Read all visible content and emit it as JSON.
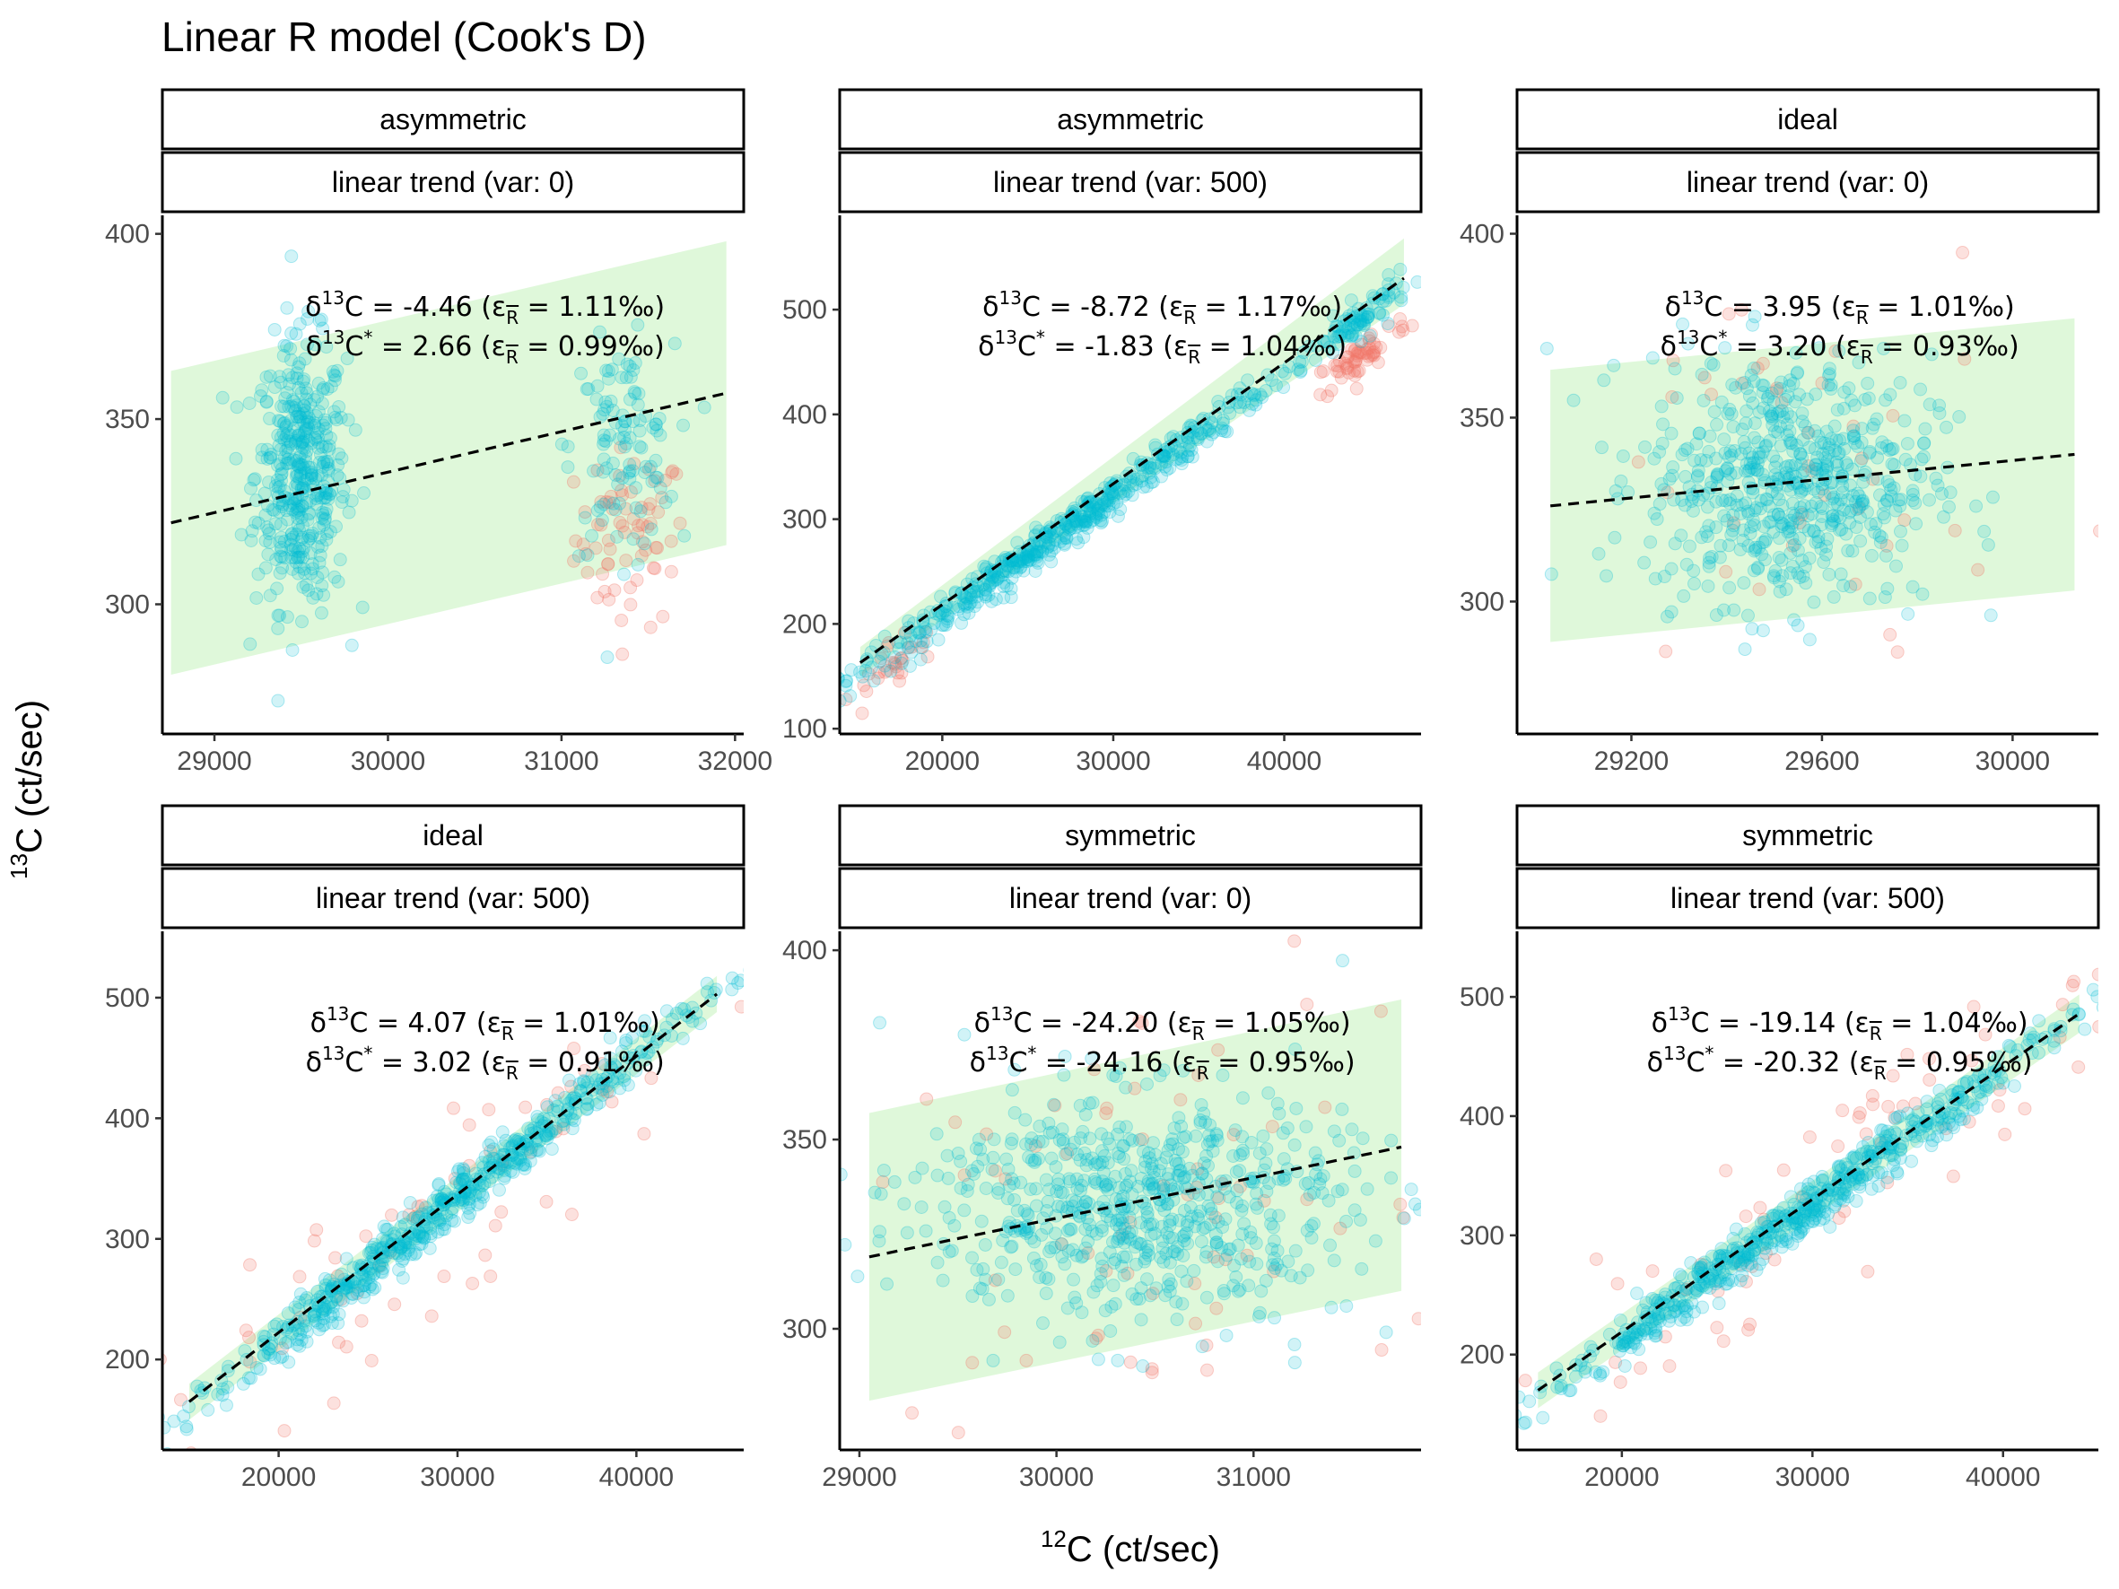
{
  "title": "Linear R model (Cook's D)",
  "axis_titles": {
    "x": {
      "sup": "12",
      "text": "C  (ct/sec)"
    },
    "y": {
      "sup": "13",
      "text": "C  (ct/sec)"
    }
  },
  "colors": {
    "kept_points": "#00bcd4",
    "outlier_points": "#f0786a",
    "band": "#d9f7d3",
    "fit_line": "#000000",
    "strip_bg": "#ffffff",
    "strip_border": "#000000"
  },
  "legend": "none",
  "grid": false,
  "chart_data": [
    {
      "type": "scatter",
      "strip": [
        "asymmetric",
        "linear trend (var: 0)"
      ],
      "x_axis_label": "12C (ct/sec)",
      "y_axis_label": "13C (ct/sec)",
      "x_ticks": [
        29000,
        30000,
        31000,
        32000
      ],
      "y_ticks": [
        300,
        350,
        400
      ],
      "xlim": [
        28700,
        32050
      ],
      "ylim": [
        265,
        405
      ],
      "clusters": [
        {
          "cx": 29500,
          "sx": 130,
          "cy": 335,
          "sy": 18,
          "n": 420,
          "slope": 0
        },
        {
          "cx": 31350,
          "sx": 150,
          "cy": 342,
          "sy": 14,
          "n": 110,
          "slope": 0
        },
        {
          "cx": 31400,
          "sx": 160,
          "cy": 318,
          "sy": 12,
          "n": 70,
          "outlier": true
        }
      ],
      "fit_line": {
        "x": [
          28750,
          31950
        ],
        "y": [
          322,
          357
        ]
      },
      "confidence_band": {
        "x": [
          28750,
          31950
        ],
        "lower": [
          281,
          316
        ],
        "upper": [
          363,
          398
        ]
      },
      "annotations": [
        "δ13C =  -4.46  (εR̄ =  1.11‰)",
        "δ13C* =  2.66  (εR̄ =  0.99‰)"
      ],
      "stats": {
        "d13c": "-4.46",
        "eps_d13c": "1.11‰",
        "d13c_star": "2.66",
        "eps_d13c_star": "0.99‰"
      }
    },
    {
      "type": "scatter",
      "strip": [
        "asymmetric",
        "linear trend (var: 500)"
      ],
      "x_axis_label": "12C (ct/sec)",
      "y_axis_label": "13C (ct/sec)",
      "x_ticks": [
        20000,
        30000,
        40000
      ],
      "y_ticks": [
        100,
        200,
        300,
        400,
        500
      ],
      "xlim": [
        14000,
        48000
      ],
      "ylim": [
        95,
        590
      ],
      "trend": {
        "a": -25,
        "b": 0.0116
      },
      "clusters": [
        {
          "cx": 27000,
          "sx": 6500,
          "trend": true,
          "sy": 9,
          "n": 520
        },
        {
          "cx": 44500,
          "sx": 1400,
          "trend": true,
          "sy": 9,
          "n": 80
        },
        {
          "cx": 44500,
          "sx": 1400,
          "trend": true,
          "offset": -35,
          "sy": 10,
          "n": 60,
          "outlier": true
        },
        {
          "cx": 17000,
          "sx": 1400,
          "trend": true,
          "offset": -15,
          "sy": 14,
          "n": 30,
          "outlier": true
        }
      ],
      "fit_line": {
        "x": [
          15200,
          47000
        ],
        "y": [
          163,
          530
        ]
      },
      "confidence_band": {
        "x": [
          15200,
          47000
        ],
        "lower": [
          150,
          505
        ],
        "upper": [
          178,
          568
        ]
      },
      "annotations": [
        "δ13C =  -8.72  (εR̄ =  1.17‰)",
        "δ13C* =  -1.83  (εR̄ =  1.04‰)"
      ],
      "stats": {
        "d13c": "-8.72",
        "eps_d13c": "1.17‰",
        "d13c_star": "-1.83",
        "eps_d13c_star": "1.04‰"
      }
    },
    {
      "type": "scatter",
      "strip": [
        "ideal",
        "linear trend (var: 0)"
      ],
      "x_axis_label": "12C (ct/sec)",
      "y_axis_label": "13C (ct/sec)",
      "x_ticks": [
        29200,
        29600,
        30000
      ],
      "y_ticks": [
        300,
        350,
        400
      ],
      "xlim": [
        28960,
        30180
      ],
      "ylim": [
        264,
        405
      ],
      "clusters": [
        {
          "cx": 29530,
          "sx": 150,
          "cy": 333,
          "sy": 17,
          "n": 600,
          "slope": 0
        },
        {
          "cx": 29530,
          "sx": 220,
          "cy": 333,
          "sy": 34,
          "n": 45,
          "outlier": true
        }
      ],
      "fit_line": {
        "x": [
          29030,
          30130
        ],
        "y": [
          326,
          340
        ]
      },
      "confidence_band": {
        "x": [
          29030,
          30130
        ],
        "lower": [
          289,
          303
        ],
        "upper": [
          363,
          377
        ]
      },
      "annotations": [
        "δ13C =  3.95  (εR̄ =  1.01‰)",
        "δ13C* =  3.20  (εR̄ =  0.93‰)"
      ],
      "stats": {
        "d13c": "3.95",
        "eps_d13c": "1.01‰",
        "d13c_star": "3.20",
        "eps_d13c_star": "0.93‰"
      }
    },
    {
      "type": "scatter",
      "strip": [
        "ideal",
        "linear trend (var: 500)"
      ],
      "x_axis_label": "12C (ct/sec)",
      "y_axis_label": "13C (ct/sec)",
      "x_ticks": [
        20000,
        30000,
        40000
      ],
      "y_ticks": [
        200,
        300,
        400,
        500
      ],
      "xlim": [
        13500,
        46000
      ],
      "ylim": [
        125,
        555
      ],
      "trend": {
        "a": -21,
        "b": 0.0118
      },
      "clusters": [
        {
          "cx": 29500,
          "sx": 7500,
          "trend": true,
          "sy": 10,
          "n": 600
        },
        {
          "cx": 29500,
          "sx": 8500,
          "trend": true,
          "sy": 24,
          "n": 70,
          "outlier": true
        }
      ],
      "fit_line": {
        "x": [
          15000,
          44500
        ],
        "y": [
          165,
          503
        ]
      },
      "confidence_band": {
        "x": [
          15000,
          44500
        ],
        "lower": [
          150,
          488
        ],
        "upper": [
          180,
          518
        ]
      },
      "annotations": [
        "δ13C =  4.07  (εR̄ =  1.01‰)",
        "δ13C* =  3.02  (εR̄ =  0.91‰)"
      ],
      "stats": {
        "d13c": "4.07",
        "eps_d13c": "1.01‰",
        "d13c_star": "3.02",
        "eps_d13c_star": "0.91‰"
      }
    },
    {
      "type": "scatter",
      "strip": [
        "symmetric",
        "linear trend (var: 0)"
      ],
      "x_axis_label": "12C (ct/sec)",
      "y_axis_label": "13C (ct/sec)",
      "x_ticks": [
        29000,
        30000,
        31000
      ],
      "y_ticks": [
        300,
        350,
        400
      ],
      "xlim": [
        28900,
        31850
      ],
      "ylim": [
        268,
        405
      ],
      "clusters": [
        {
          "cx": 30400,
          "sx": 550,
          "cy": 333,
          "sy": 15,
          "n": 650,
          "slope": 0
        },
        {
          "cx": 30400,
          "sx": 650,
          "cy": 333,
          "sy": 30,
          "n": 70,
          "outlier": true
        }
      ],
      "fit_line": {
        "x": [
          29050,
          31750
        ],
        "y": [
          319,
          348
        ]
      },
      "confidence_band": {
        "x": [
          29050,
          31750
        ],
        "lower": [
          281,
          310
        ],
        "upper": [
          357,
          387
        ]
      },
      "annotations": [
        "δ13C =  -24.20  (εR̄ =  1.05‰)",
        "δ13C* =  -24.16  (εR̄ =  0.95‰)"
      ],
      "stats": {
        "d13c": "-24.20",
        "eps_d13c": "1.05‰",
        "d13c_star": "-24.16",
        "eps_d13c_star": "0.95‰"
      }
    },
    {
      "type": "scatter",
      "strip": [
        "symmetric",
        "linear trend (var: 500)"
      ],
      "x_axis_label": "12C (ct/sec)",
      "y_axis_label": "13C (ct/sec)",
      "x_ticks": [
        20000,
        30000,
        40000
      ],
      "y_ticks": [
        200,
        300,
        400,
        500
      ],
      "xlim": [
        14500,
        45000
      ],
      "ylim": [
        120,
        555
      ],
      "trend": {
        "a": -16,
        "b": 0.0114
      },
      "clusters": [
        {
          "cx": 29500,
          "sx": 7000,
          "trend": true,
          "sy": 10,
          "n": 600
        },
        {
          "cx": 29500,
          "sx": 8000,
          "trend": true,
          "sy": 24,
          "n": 70,
          "outlier": true
        }
      ],
      "fit_line": {
        "x": [
          15600,
          44000
        ],
        "y": [
          170,
          486
        ]
      },
      "confidence_band": {
        "x": [
          15600,
          44000
        ],
        "lower": [
          155,
          470
        ],
        "upper": [
          185,
          502
        ]
      },
      "annotations": [
        "δ13C =  -19.14  (εR̄ =  1.04‰)",
        "δ13C* =  -20.32  (εR̄ =  0.95‰)"
      ],
      "stats": {
        "d13c": "-19.14",
        "eps_d13c": "1.04‰",
        "d13c_star": "-20.32",
        "eps_d13c_star": "0.95‰"
      }
    }
  ]
}
